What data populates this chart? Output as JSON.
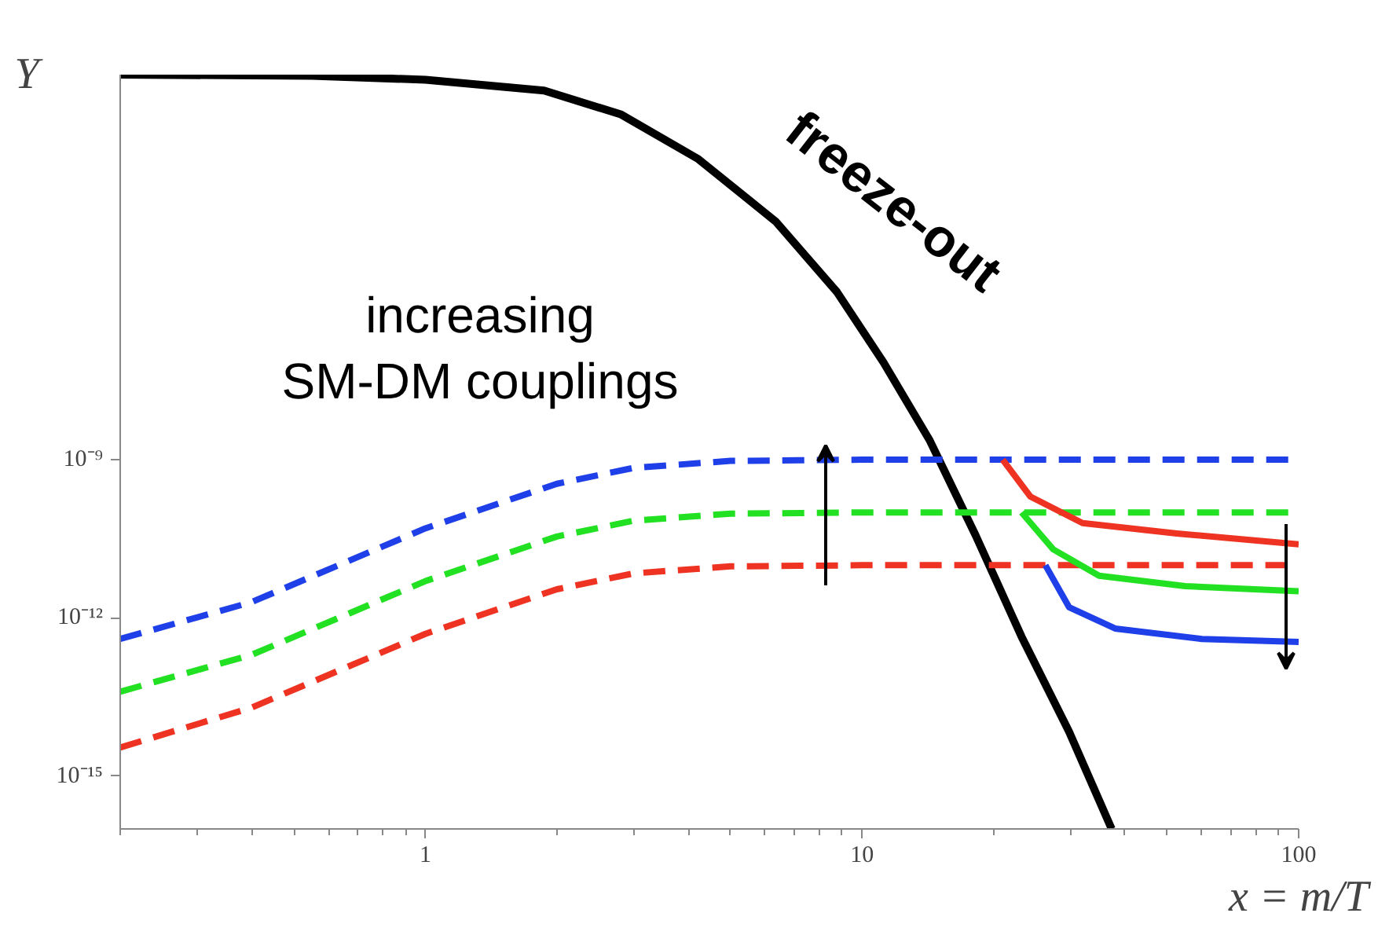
{
  "chart_data": {
    "type": "line",
    "xlabel": "x = m/T",
    "ylabel": "Y",
    "log": "xy",
    "grid": false,
    "legend": false,
    "xlim": [
      0.2,
      100
    ],
    "ylim": [
      1e-16,
      0.02
    ],
    "xticks": [
      1,
      10,
      100
    ],
    "yticks": [
      {
        "value": 1e-09,
        "label": "10⁻⁹"
      },
      {
        "value": 1e-12,
        "label": "10⁻¹²"
      },
      {
        "value": 1e-15,
        "label": "10⁻¹⁵"
      }
    ],
    "annotations": [
      "increasing",
      "SM-DM couplings"
    ],
    "series": [
      {
        "name": "freeze-out",
        "color": "#000000",
        "line_style": "solid",
        "x": [
          0.2,
          0.55,
          1,
          1.87,
          2.81,
          4.22,
          6.34,
          8.77,
          11.2,
          14.3,
          18.2,
          23.2,
          29.8,
          37.3
        ],
        "values": [
          0.02,
          0.019,
          0.016,
          0.01,
          0.0035,
          0.0005,
          3.3e-05,
          1.5e-06,
          7e-08,
          2.3e-09,
          3.7e-11,
          4.4e-13,
          7e-15,
          1e-16
        ]
      },
      {
        "color": "#1f3fe8",
        "line_style": "dashed",
        "x": [
          0.2,
          0.4,
          1,
          2,
          3,
          5,
          10,
          100
        ],
        "values": [
          4e-13,
          2e-12,
          5e-11,
          3.5e-10,
          7e-10,
          9.5e-10,
          1e-09,
          1e-09
        ]
      },
      {
        "color": "#22e022",
        "line_style": "dashed",
        "x": [
          0.2,
          0.4,
          1,
          2,
          3,
          5,
          10,
          100
        ],
        "values": [
          4e-14,
          2e-13,
          5e-12,
          3.5e-11,
          7e-11,
          9.5e-11,
          1e-10,
          1e-10
        ]
      },
      {
        "color": "#ee3322",
        "line_style": "dashed",
        "x": [
          0.2,
          0.4,
          1,
          2,
          3,
          5,
          10,
          100
        ],
        "values": [
          3.5e-15,
          2e-14,
          5e-13,
          3.5e-12,
          7e-12,
          9.5e-12,
          1e-11,
          1e-11
        ]
      },
      {
        "color": "#ee3322",
        "line_style": "solid",
        "x": [
          21,
          24.3,
          32,
          52.6,
          100
        ],
        "values": [
          1e-09,
          2e-10,
          6.3e-11,
          4e-11,
          2.5e-11
        ]
      },
      {
        "color": "#22e022",
        "line_style": "solid",
        "x": [
          23.2,
          27.4,
          34.9,
          55,
          100
        ],
        "values": [
          1e-10,
          2e-11,
          6.3e-12,
          4e-12,
          3.2e-12
        ]
      },
      {
        "color": "#1f3fe8",
        "line_style": "solid",
        "x": [
          26.3,
          29.8,
          38,
          60,
          100
        ],
        "values": [
          1e-11,
          1.6e-12,
          6.3e-13,
          4e-13,
          3.5e-13
        ]
      }
    ]
  }
}
